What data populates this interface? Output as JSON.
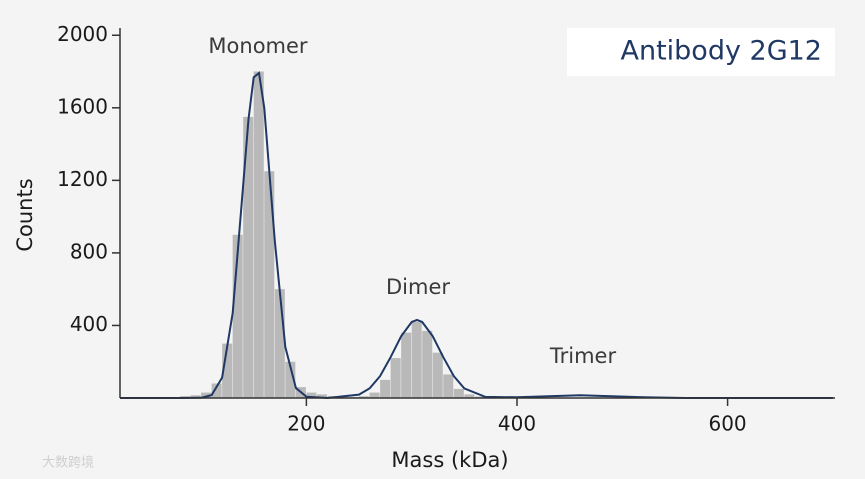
{
  "chart_data": {
    "type": "histogram",
    "title": "Antibody 2G12",
    "x_label": "Mass (kDa)",
    "y_label": "Counts",
    "annotations": [
      "Monomer",
      "Dimer",
      "Trimer"
    ],
    "watermark": "大数跨境",
    "bins": [
      80,
      90,
      100,
      110,
      120,
      130,
      140,
      150,
      160,
      170,
      180,
      190,
      200,
      210,
      220,
      230,
      240,
      250,
      260,
      270,
      280,
      290,
      300,
      310,
      320,
      330,
      340,
      350,
      360,
      370
    ],
    "counts": [
      10,
      15,
      30,
      80,
      300,
      900,
      1550,
      1800,
      1250,
      600,
      200,
      60,
      30,
      20,
      10,
      5,
      5,
      10,
      30,
      100,
      220,
      360,
      420,
      370,
      250,
      130,
      50,
      20,
      8
    ],
    "color": "#b9b9b9",
    "fit": {
      "color": "#1f3864",
      "x": [
        23,
        80,
        100,
        110,
        120,
        130,
        140,
        145,
        150,
        155,
        160,
        170,
        180,
        190,
        200,
        220,
        250,
        260,
        270,
        280,
        290,
        300,
        305,
        310,
        320,
        330,
        340,
        350,
        370,
        400,
        430,
        460,
        490,
        520,
        560,
        600,
        700
      ],
      "values": [
        0,
        0,
        1,
        16,
        112,
        469,
        1176,
        1537,
        1768,
        1792,
        1597,
        866,
        282,
        55,
        7,
        0,
        19,
        53,
        121,
        225,
        341,
        419,
        430,
        419,
        341,
        225,
        121,
        53,
        6,
        4,
        10,
        15,
        10,
        4,
        0,
        0,
        0
      ]
    },
    "xlim": [
      23,
      702
    ],
    "ylim": [
      0,
      2040
    ],
    "xticks": [
      200,
      400,
      600
    ],
    "yticks": [
      400,
      800,
      1200,
      1600,
      2000
    ]
  }
}
